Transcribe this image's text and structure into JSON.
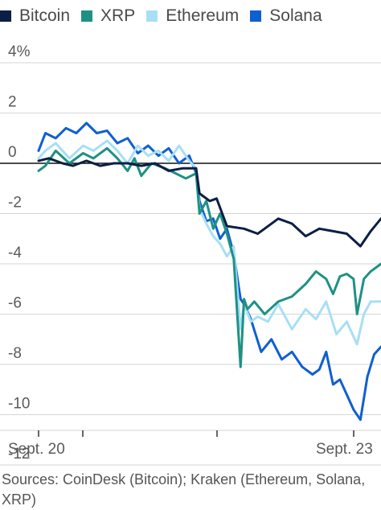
{
  "chart_data": {
    "type": "line",
    "y_unit": "%",
    "ylim": [
      -12.5,
      4.5
    ],
    "yticks": [
      4,
      2,
      0,
      -2,
      -4,
      -6,
      -8,
      -10,
      -12
    ],
    "ytick_labels": [
      "4%",
      "2",
      "0",
      "-2",
      "-4",
      "-6",
      "-8",
      "-10",
      "-12"
    ],
    "xtick_labels": [
      "Sept. 20",
      "Sept. 23"
    ],
    "grid": true,
    "legend_position": "top",
    "source": "Sources: CoinDesk (Bitcoin); Kraken (Ethereum, Solana, XRP)",
    "series": [
      {
        "name": "Bitcoin",
        "color": "#0b1f44",
        "x": [
          0,
          0.03,
          0.07,
          0.1,
          0.14,
          0.18,
          0.22,
          0.26,
          0.3,
          0.34,
          0.38,
          0.42,
          0.46,
          0.47,
          0.5,
          0.52,
          0.55,
          0.6,
          0.64,
          0.66,
          0.7,
          0.74,
          0.78,
          0.82,
          0.86,
          0.9,
          0.94,
          0.97,
          1.0
        ],
        "y": [
          0.1,
          0.2,
          0.0,
          -0.1,
          0.1,
          -0.1,
          0.0,
          0.0,
          -0.1,
          0.0,
          -0.3,
          -0.2,
          -0.2,
          -1.2,
          -1.5,
          -1.4,
          -2.5,
          -2.6,
          -2.8,
          -2.6,
          -2.2,
          -2.4,
          -2.9,
          -2.6,
          -2.7,
          -2.8,
          -3.3,
          -2.7,
          -2.2
        ]
      },
      {
        "name": "XRP",
        "color": "#1f9183",
        "x": [
          0,
          0.02,
          0.05,
          0.09,
          0.13,
          0.16,
          0.2,
          0.23,
          0.26,
          0.28,
          0.3,
          0.33,
          0.37,
          0.4,
          0.43,
          0.46,
          0.47,
          0.49,
          0.51,
          0.53,
          0.55,
          0.57,
          0.59,
          0.6,
          0.61,
          0.63,
          0.66,
          0.7,
          0.74,
          0.78,
          0.81,
          0.84,
          0.86,
          0.88,
          0.9,
          0.92,
          0.93,
          0.95,
          0.97,
          1.0
        ],
        "y": [
          -0.3,
          -0.1,
          0.5,
          0.0,
          0.4,
          0.2,
          0.6,
          0.2,
          -0.3,
          0.2,
          -0.5,
          0.0,
          -0.2,
          -0.4,
          -0.6,
          -0.4,
          -2.0,
          -1.5,
          -2.6,
          -2.0,
          -2.8,
          -3.8,
          -8.1,
          -5.4,
          -5.8,
          -5.5,
          -6.0,
          -5.5,
          -5.3,
          -4.8,
          -4.3,
          -4.6,
          -5.2,
          -4.5,
          -4.4,
          -4.6,
          -6.0,
          -4.6,
          -4.3,
          -4.0
        ]
      },
      {
        "name": "Ethereum",
        "color": "#a8dff4",
        "x": [
          0,
          0.02,
          0.05,
          0.09,
          0.13,
          0.16,
          0.2,
          0.23,
          0.26,
          0.29,
          0.32,
          0.35,
          0.38,
          0.41,
          0.44,
          0.46,
          0.47,
          0.49,
          0.51,
          0.53,
          0.55,
          0.57,
          0.59,
          0.6,
          0.62,
          0.64,
          0.67,
          0.7,
          0.74,
          0.78,
          0.81,
          0.84,
          0.87,
          0.9,
          0.92,
          0.93,
          0.95,
          0.97,
          1.0
        ],
        "y": [
          0.2,
          0.5,
          0.8,
          0.2,
          0.7,
          0.5,
          0.9,
          0.5,
          0.0,
          0.7,
          0.3,
          0.5,
          0.1,
          0.7,
          0.1,
          -0.2,
          -1.8,
          -2.4,
          -2.9,
          -3.2,
          -3.7,
          -3.3,
          -6.6,
          -5.6,
          -6.3,
          -6.1,
          -6.3,
          -5.6,
          -6.6,
          -5.8,
          -6.2,
          -5.5,
          -6.8,
          -6.3,
          -6.9,
          -7.2,
          -6.0,
          -5.5,
          -5.5
        ]
      },
      {
        "name": "Solana",
        "color": "#0f5fd1",
        "x": [
          0,
          0.02,
          0.05,
          0.08,
          0.11,
          0.14,
          0.17,
          0.2,
          0.23,
          0.26,
          0.29,
          0.32,
          0.35,
          0.38,
          0.41,
          0.44,
          0.46,
          0.47,
          0.49,
          0.51,
          0.53,
          0.55,
          0.57,
          0.59,
          0.6,
          0.62,
          0.65,
          0.68,
          0.71,
          0.74,
          0.77,
          0.8,
          0.82,
          0.84,
          0.86,
          0.88,
          0.9,
          0.92,
          0.94,
          0.96,
          0.98,
          1.0
        ],
        "y": [
          0.5,
          1.2,
          1.0,
          1.4,
          1.2,
          1.6,
          1.2,
          1.3,
          0.8,
          1.0,
          0.4,
          0.7,
          0.3,
          0.6,
          0.0,
          0.3,
          -0.4,
          -1.5,
          -2.3,
          -2.2,
          -3.0,
          -2.6,
          -3.6,
          -5.4,
          -5.6,
          -6.2,
          -7.5,
          -7.0,
          -7.8,
          -7.5,
          -8.1,
          -8.4,
          -8.2,
          -7.5,
          -8.8,
          -8.6,
          -9.2,
          -9.8,
          -10.2,
          -8.5,
          -7.6,
          -7.3
        ]
      }
    ]
  }
}
